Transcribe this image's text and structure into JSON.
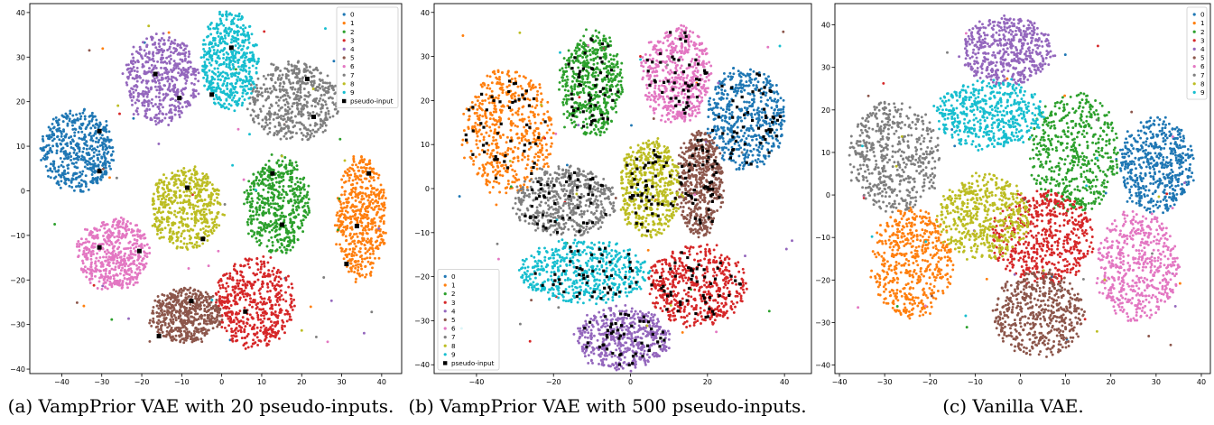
{
  "colors": {
    "0": "#1f77b4",
    "1": "#ff7f0e",
    "2": "#2ca02c",
    "3": "#d62728",
    "4": "#9467bd",
    "5": "#8c564b",
    "6": "#e377c2",
    "7": "#7f7f7f",
    "8": "#bcbd22",
    "9": "#17becf",
    "pseudo-input": "#000000",
    "axes": "#000000",
    "background": "#ffffff"
  },
  "chart_data": [
    {
      "type": "scatter",
      "title": "",
      "caption": "(a) VampPrior VAE with 20 pseudo-inputs.",
      "xlabel": "",
      "ylabel": "",
      "xlim": [
        -48,
        45
      ],
      "ylim": [
        -41,
        42
      ],
      "xticks": [
        -40,
        -30,
        -20,
        -10,
        0,
        10,
        20,
        30,
        40
      ],
      "yticks": [
        -40,
        -30,
        -20,
        -10,
        0,
        10,
        20,
        30,
        40
      ],
      "legend": {
        "position": "top-right",
        "entries": [
          "0",
          "1",
          "2",
          "3",
          "4",
          "5",
          "6",
          "7",
          "8",
          "9",
          "pseudo-input"
        ]
      },
      "clusters": [
        {
          "class": "0",
          "cx": -36,
          "cy": 9,
          "rx": 9,
          "ry": 9
        },
        {
          "class": "1",
          "cx": 35,
          "cy": -6,
          "rx": 6,
          "ry": 14
        },
        {
          "class": "2",
          "cx": 14,
          "cy": -3,
          "rx": 8,
          "ry": 11
        },
        {
          "class": "3",
          "cx": 8,
          "cy": -25,
          "rx": 10,
          "ry": 10
        },
        {
          "class": "4",
          "cx": -15,
          "cy": 25,
          "rx": 9,
          "ry": 10
        },
        {
          "class": "5",
          "cx": -9,
          "cy": -28,
          "rx": 9,
          "ry": 6
        },
        {
          "class": "6",
          "cx": -27,
          "cy": -14,
          "rx": 9,
          "ry": 8
        },
        {
          "class": "7",
          "cx": 18,
          "cy": 20,
          "rx": 11,
          "ry": 9
        },
        {
          "class": "8",
          "cx": -9,
          "cy": -4,
          "rx": 9,
          "ry": 9
        },
        {
          "class": "9",
          "cx": 2,
          "cy": 29,
          "rx": 7,
          "ry": 11
        }
      ],
      "pseudo_inputs": [
        [
          -30.6,
          13.4
        ],
        [
          -30.6,
          4.4
        ],
        [
          -16.6,
          26.2
        ],
        [
          -10.6,
          20.8
        ],
        [
          2.4,
          32.1
        ],
        [
          -2.5,
          21.6
        ],
        [
          21.4,
          25.1
        ],
        [
          23,
          16.6
        ],
        [
          -8.6,
          0.7
        ],
        [
          -4.7,
          -10.8
        ],
        [
          12.7,
          3.9
        ],
        [
          15.1,
          -7.6
        ],
        [
          36.8,
          3.9
        ],
        [
          33.8,
          -7.9
        ],
        [
          31.2,
          -16.4
        ],
        [
          -30.6,
          -12.7
        ],
        [
          -20.6,
          -13.5
        ],
        [
          -7.6,
          -24.7
        ],
        [
          5.9,
          -27.1
        ],
        [
          -15.7,
          -32.6
        ]
      ]
    },
    {
      "type": "scatter",
      "title": "",
      "caption": "(b) VampPrior VAE with 500 pseudo-inputs.",
      "xlabel": "",
      "ylabel": "",
      "xlim": [
        -51,
        47
      ],
      "ylim": [
        -42,
        42
      ],
      "xticks": [
        -40,
        -20,
        0,
        20,
        40
      ],
      "yticks": [
        -40,
        -30,
        -20,
        -10,
        0,
        10,
        20,
        30,
        40
      ],
      "legend": {
        "position": "bottom-left",
        "entries": [
          "0",
          "1",
          "2",
          "3",
          "4",
          "5",
          "6",
          "7",
          "8",
          "9",
          "pseudo-input"
        ]
      },
      "clusters": [
        {
          "class": "0",
          "cx": 30,
          "cy": 16,
          "rx": 10,
          "ry": 12
        },
        {
          "class": "1",
          "cx": -32,
          "cy": 13,
          "rx": 12,
          "ry": 14
        },
        {
          "class": "2",
          "cx": -10,
          "cy": 24,
          "rx": 8,
          "ry": 12
        },
        {
          "class": "3",
          "cx": 17,
          "cy": -22,
          "rx": 13,
          "ry": 9
        },
        {
          "class": "4",
          "cx": -2,
          "cy": -34,
          "rx": 12,
          "ry": 7
        },
        {
          "class": "5",
          "cx": 18,
          "cy": 1,
          "rx": 6,
          "ry": 12
        },
        {
          "class": "6",
          "cx": 12,
          "cy": 26,
          "rx": 9,
          "ry": 11
        },
        {
          "class": "7",
          "cx": -17,
          "cy": -3,
          "rx": 13,
          "ry": 8
        },
        {
          "class": "8",
          "cx": 5,
          "cy": 0,
          "rx": 8,
          "ry": 11
        },
        {
          "class": "9",
          "cx": -12,
          "cy": -19,
          "rx": 17,
          "ry": 7
        }
      ],
      "pseudo_inputs": "500 points spread over all clusters"
    },
    {
      "type": "scatter",
      "title": "",
      "caption": "(c) Vanilla VAE.",
      "xlabel": "",
      "ylabel": "",
      "xlim": [
        -41,
        42
      ],
      "ylim": [
        -42,
        45
      ],
      "xticks": [
        -40,
        -30,
        -20,
        -10,
        0,
        10,
        20,
        30,
        40
      ],
      "yticks": [
        -40,
        -30,
        -20,
        -10,
        0,
        10,
        20,
        30,
        40
      ],
      "legend": {
        "position": "top-right",
        "entries": [
          "0",
          "1",
          "2",
          "3",
          "4",
          "5",
          "6",
          "7",
          "8",
          "9"
        ]
      },
      "clusters": [
        {
          "class": "0",
          "cx": 30,
          "cy": 7,
          "rx": 8,
          "ry": 11
        },
        {
          "class": "1",
          "cx": -24,
          "cy": -16,
          "rx": 9,
          "ry": 13
        },
        {
          "class": "2",
          "cx": 12,
          "cy": 10,
          "rx": 10,
          "ry": 14
        },
        {
          "class": "3",
          "cx": 5,
          "cy": -10,
          "rx": 11,
          "ry": 11
        },
        {
          "class": "4",
          "cx": -3,
          "cy": 34,
          "rx": 10,
          "ry": 8
        },
        {
          "class": "5",
          "cx": 4,
          "cy": -28,
          "rx": 10,
          "ry": 10
        },
        {
          "class": "6",
          "cx": 26,
          "cy": -17,
          "rx": 9,
          "ry": 13
        },
        {
          "class": "7",
          "cx": -28,
          "cy": 9,
          "rx": 10,
          "ry": 13
        },
        {
          "class": "8",
          "cx": -8,
          "cy": -5,
          "rx": 10,
          "ry": 10
        },
        {
          "class": "9",
          "cx": -7,
          "cy": 19,
          "rx": 12,
          "ry": 8
        }
      ],
      "pseudo_inputs": []
    }
  ]
}
